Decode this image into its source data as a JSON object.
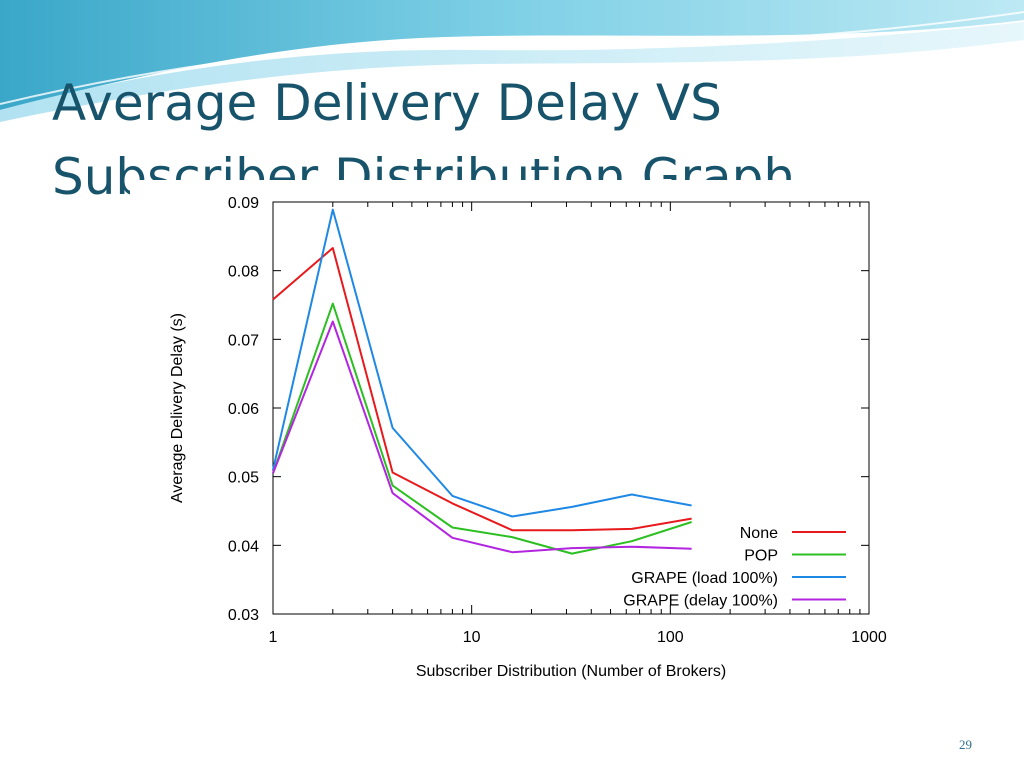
{
  "slide": {
    "title_line1": "Average Delivery Delay VS",
    "title_line2": "Subscriber Distribution Graph",
    "slide_number": "29",
    "accent_color": "#17546b"
  },
  "chart_data": {
    "type": "line",
    "xlabel": "Subscriber Distribution (Number of Brokers)",
    "ylabel": "Average Delivery Delay (s)",
    "x_scale": "log",
    "xlim": [
      1,
      1000
    ],
    "ylim": [
      0.03,
      0.09
    ],
    "x_ticks": [
      1,
      10,
      100,
      1000
    ],
    "x_tick_labels": [
      "1",
      "10",
      "100",
      "1000"
    ],
    "y_ticks": [
      0.03,
      0.04,
      0.05,
      0.06,
      0.07,
      0.08,
      0.09
    ],
    "y_tick_labels": [
      "0.03",
      "0.04",
      "0.05",
      "0.06",
      "0.07",
      "0.08",
      "0.09"
    ],
    "grid": false,
    "legend_position": "bottom-right",
    "x": [
      1,
      2,
      4,
      8,
      16,
      32,
      64,
      128
    ],
    "series": [
      {
        "name": "None",
        "color": "#e8191c",
        "values": [
          0.0758,
          0.0833,
          0.0506,
          0.0461,
          0.0422,
          0.0422,
          0.0424,
          0.0439
        ]
      },
      {
        "name": "POP",
        "color": "#2cbf21",
        "values": [
          0.0505,
          0.0752,
          0.0487,
          0.0426,
          0.0412,
          0.0388,
          0.0406,
          0.0434
        ]
      },
      {
        "name": "GRAPE (load 100%)",
        "color": "#1e88e5",
        "values": [
          0.051,
          0.0889,
          0.0571,
          0.0472,
          0.0442,
          0.0456,
          0.0474,
          0.0458
        ]
      },
      {
        "name": "GRAPE (delay 100%)",
        "color": "#b326e0",
        "values": [
          0.0505,
          0.0726,
          0.0476,
          0.0411,
          0.039,
          0.0396,
          0.0398,
          0.0395
        ]
      }
    ]
  }
}
